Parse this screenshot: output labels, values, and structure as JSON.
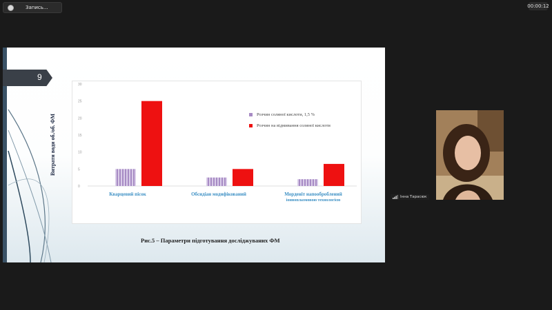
{
  "recording": {
    "label": "Запись..."
  },
  "timer": {
    "value": "00:00:12"
  },
  "slide": {
    "number": "9",
    "caption": "Рис.5 – Параметри підготування досліджуваних ФМ"
  },
  "participant": {
    "name": "Інна Тарасюк"
  },
  "chart_data": {
    "type": "bar",
    "ylabel": "Витрати води об./об. ФМ",
    "ylim": [
      0,
      30
    ],
    "yticks": [
      0,
      5,
      10,
      15,
      20,
      25,
      30
    ],
    "categories": [
      {
        "line1": "Кварцевий пісок",
        "line2": ""
      },
      {
        "line1": "Обсидіан модифікований",
        "line2": ""
      },
      {
        "line1": "Морденіт напооброблений",
        "line2": "іонноплазмовою технологією"
      }
    ],
    "series": [
      {
        "name": "Розчин соляної кислоти, 1,5 %",
        "color": "#a78bc4",
        "values": [
          5.0,
          2.5,
          2.0
        ]
      },
      {
        "name": "Розчин на відмивання соляної кислоти",
        "color": "#ee1111",
        "values": [
          25.0,
          5.0,
          6.5
        ]
      }
    ],
    "grid": false,
    "legend": "right"
  }
}
